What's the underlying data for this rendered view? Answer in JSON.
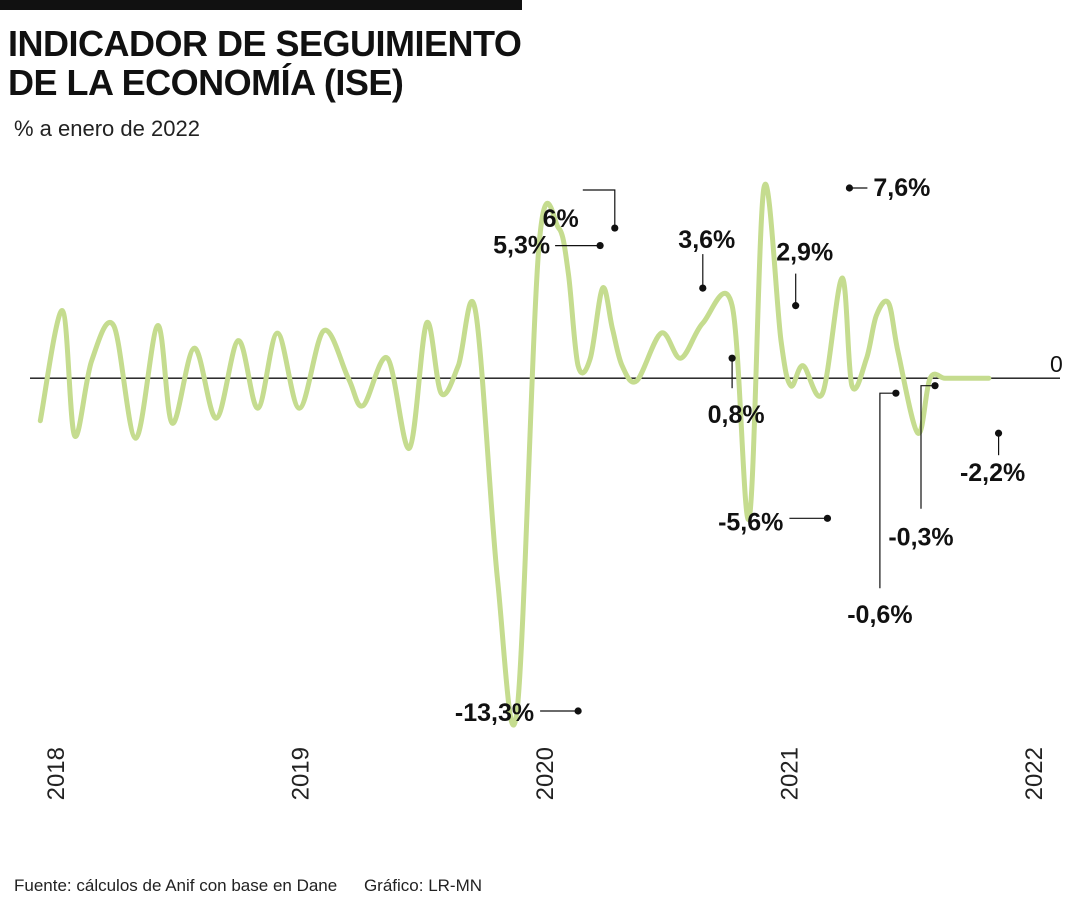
{
  "header": {
    "title_line1": "INDICADOR DE SEGUIMIENTO",
    "title_line2": "DE LA ECONOMÍA (ISE)",
    "subtitle": "% a enero de 2022"
  },
  "footer": {
    "source": "Fuente: cálculos de Anif con base en Dane",
    "credit": "Gráfico: LR-MN"
  },
  "colors": {
    "line": "#c5dc8f",
    "axis": "#111111",
    "text": "#111111"
  },
  "chart_data": {
    "type": "line",
    "title": "INDICADOR DE SEGUIMIENTO DE LA ECONOMÍA (ISE)",
    "subtitle": "% a enero de 2022",
    "xlabel": "",
    "ylabel": "%",
    "ylim": [
      -13.3,
      7.6
    ],
    "xlim": [
      2018.0,
      2022.05
    ],
    "zero_label": "0",
    "x_ticks": [
      "2018",
      "2019",
      "2020",
      "2021",
      "2022"
    ],
    "x_tick_values": [
      2018,
      2019,
      2020,
      2021,
      2022
    ],
    "series": [
      {
        "name": "ISE",
        "x": [
          2017.94,
          2018.03,
          2018.08,
          2018.15,
          2018.24,
          2018.33,
          2018.42,
          2018.48,
          2018.57,
          2018.66,
          2018.75,
          2018.83,
          2018.91,
          2019.0,
          2019.1,
          2019.2,
          2019.26,
          2019.36,
          2019.45,
          2019.52,
          2019.58,
          2019.65,
          2019.72,
          2019.81,
          2019.89,
          2019.98,
          2020.06,
          2020.1,
          2020.14,
          2020.19,
          2020.24,
          2020.28,
          2020.32,
          2020.38,
          2020.48,
          2020.56,
          2020.65,
          2020.77,
          2020.84,
          2020.9,
          2020.97,
          2021.01,
          2021.06,
          2021.14,
          2021.22,
          2021.26,
          2021.32,
          2021.36,
          2021.41,
          2021.45,
          2021.53,
          2021.58,
          2021.64,
          2021.71,
          2021.82,
          2021.88
        ],
        "values": [
          -1.7,
          2.7,
          -2.3,
          0.7,
          2.1,
          -2.4,
          2.1,
          -1.8,
          1.2,
          -1.6,
          1.5,
          -1.2,
          1.8,
          -1.2,
          1.9,
          0.0,
          -1.1,
          0.8,
          -2.8,
          2.2,
          -0.6,
          0.5,
          2.7,
          -8.0,
          -13.3,
          5.3,
          6.0,
          4.2,
          0.5,
          0.8,
          3.6,
          2.0,
          0.5,
          -0.1,
          1.8,
          0.8,
          2.2,
          2.9,
          -5.6,
          7.6,
          1.5,
          -0.3,
          0.5,
          -0.6,
          4.0,
          -0.3,
          0.8,
          2.5,
          3.0,
          1.0,
          -2.2,
          0,
          0,
          0,
          0,
          0
        ]
      }
    ],
    "annotations": [
      {
        "label": "6%",
        "x": 2020.29,
        "y": 6.0
      },
      {
        "label": "5,3%",
        "x": 2020.23,
        "y": 5.3
      },
      {
        "label": "3,6%",
        "x": 2020.65,
        "y": 3.6
      },
      {
        "label": "2,9%",
        "x": 2021.03,
        "y": 2.9
      },
      {
        "label": "7,6%",
        "x": 2021.25,
        "y": 7.6
      },
      {
        "label": "0,8%",
        "x": 2020.77,
        "y": 0.8
      },
      {
        "label": "-13,3%",
        "x": 2020.14,
        "y": -13.3
      },
      {
        "label": "-5,6%",
        "x": 2021.16,
        "y": -5.6
      },
      {
        "label": "-0,6%",
        "x": 2021.44,
        "y": -0.6
      },
      {
        "label": "-0,3%",
        "x": 2021.6,
        "y": -0.3
      },
      {
        "label": "-2,2%",
        "x": 2021.86,
        "y": -2.2
      }
    ]
  }
}
